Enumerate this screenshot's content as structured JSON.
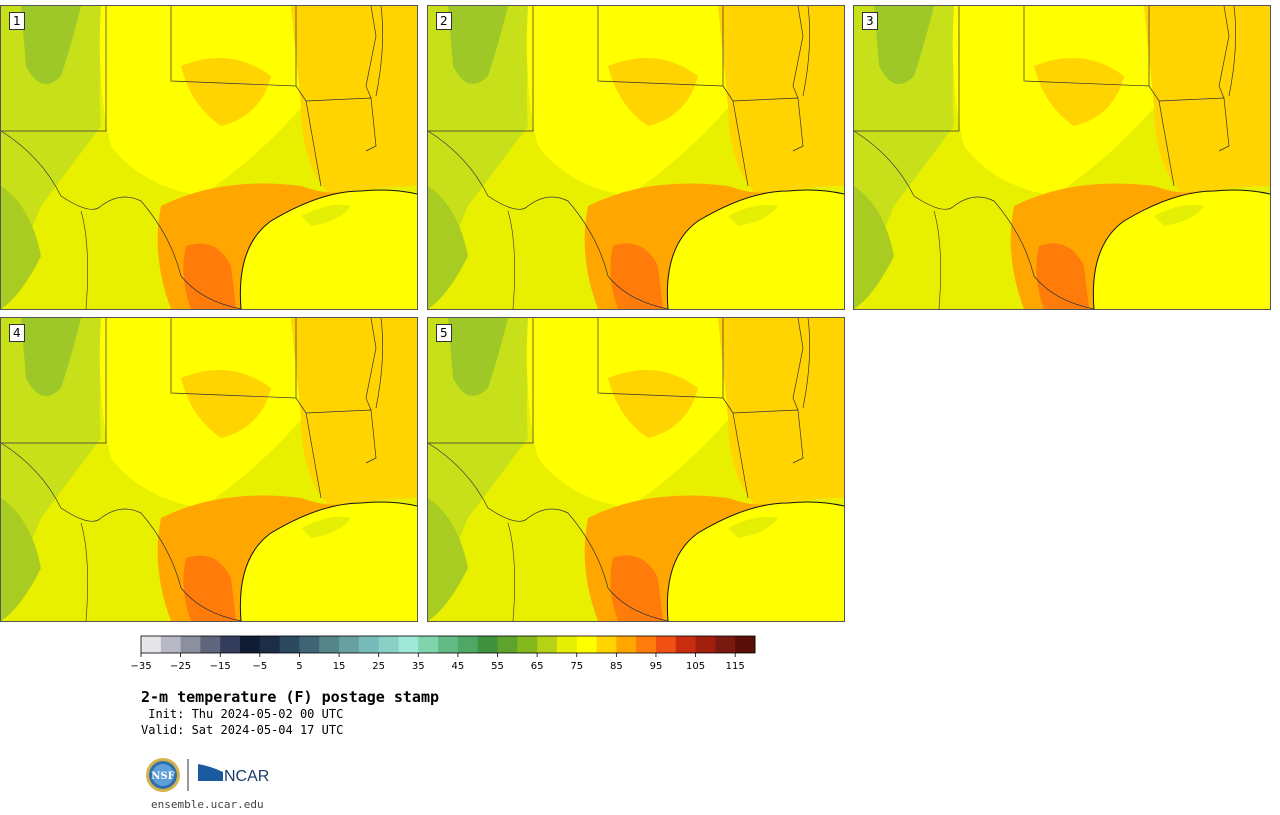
{
  "title": "2-m temperature (F) postage stamp",
  "init_line": " Init: Thu 2024-05-02 00 UTC",
  "valid_line": "Valid: Sat 2024-05-04 17 UTC",
  "url": "ensemble.ucar.edu",
  "logo": {
    "nsf": "NSF",
    "ncar": "NCAR"
  },
  "panels": [
    {
      "id": "1"
    },
    {
      "id": "2"
    },
    {
      "id": "3"
    },
    {
      "id": "4"
    },
    {
      "id": "5"
    }
  ],
  "colorbar": {
    "tick_labels": [
      "−35",
      "−25",
      "−15",
      "−5",
      "5",
      "15",
      "25",
      "35",
      "45",
      "55",
      "65",
      "75",
      "85",
      "95",
      "105",
      "115"
    ],
    "colors": [
      "#e6e6ea",
      "#b8b8c6",
      "#8c8fa0",
      "#5f657c",
      "#333c5a",
      "#101c33",
      "#1b2d47",
      "#2b4a60",
      "#3f6575",
      "#568589",
      "#68a0a0",
      "#77baba",
      "#8bd0c6",
      "#9ee8d6",
      "#7fd4ac",
      "#62ba84",
      "#4ea764",
      "#3f913f",
      "#5ea42c",
      "#84b81c",
      "#b5d214",
      "#e5ee05",
      "#ffff00",
      "#ffd400",
      "#ffa600",
      "#ff7c0a",
      "#f05014",
      "#c82d0e",
      "#a01f0d",
      "#7a190e",
      "#5a1009"
    ]
  }
}
